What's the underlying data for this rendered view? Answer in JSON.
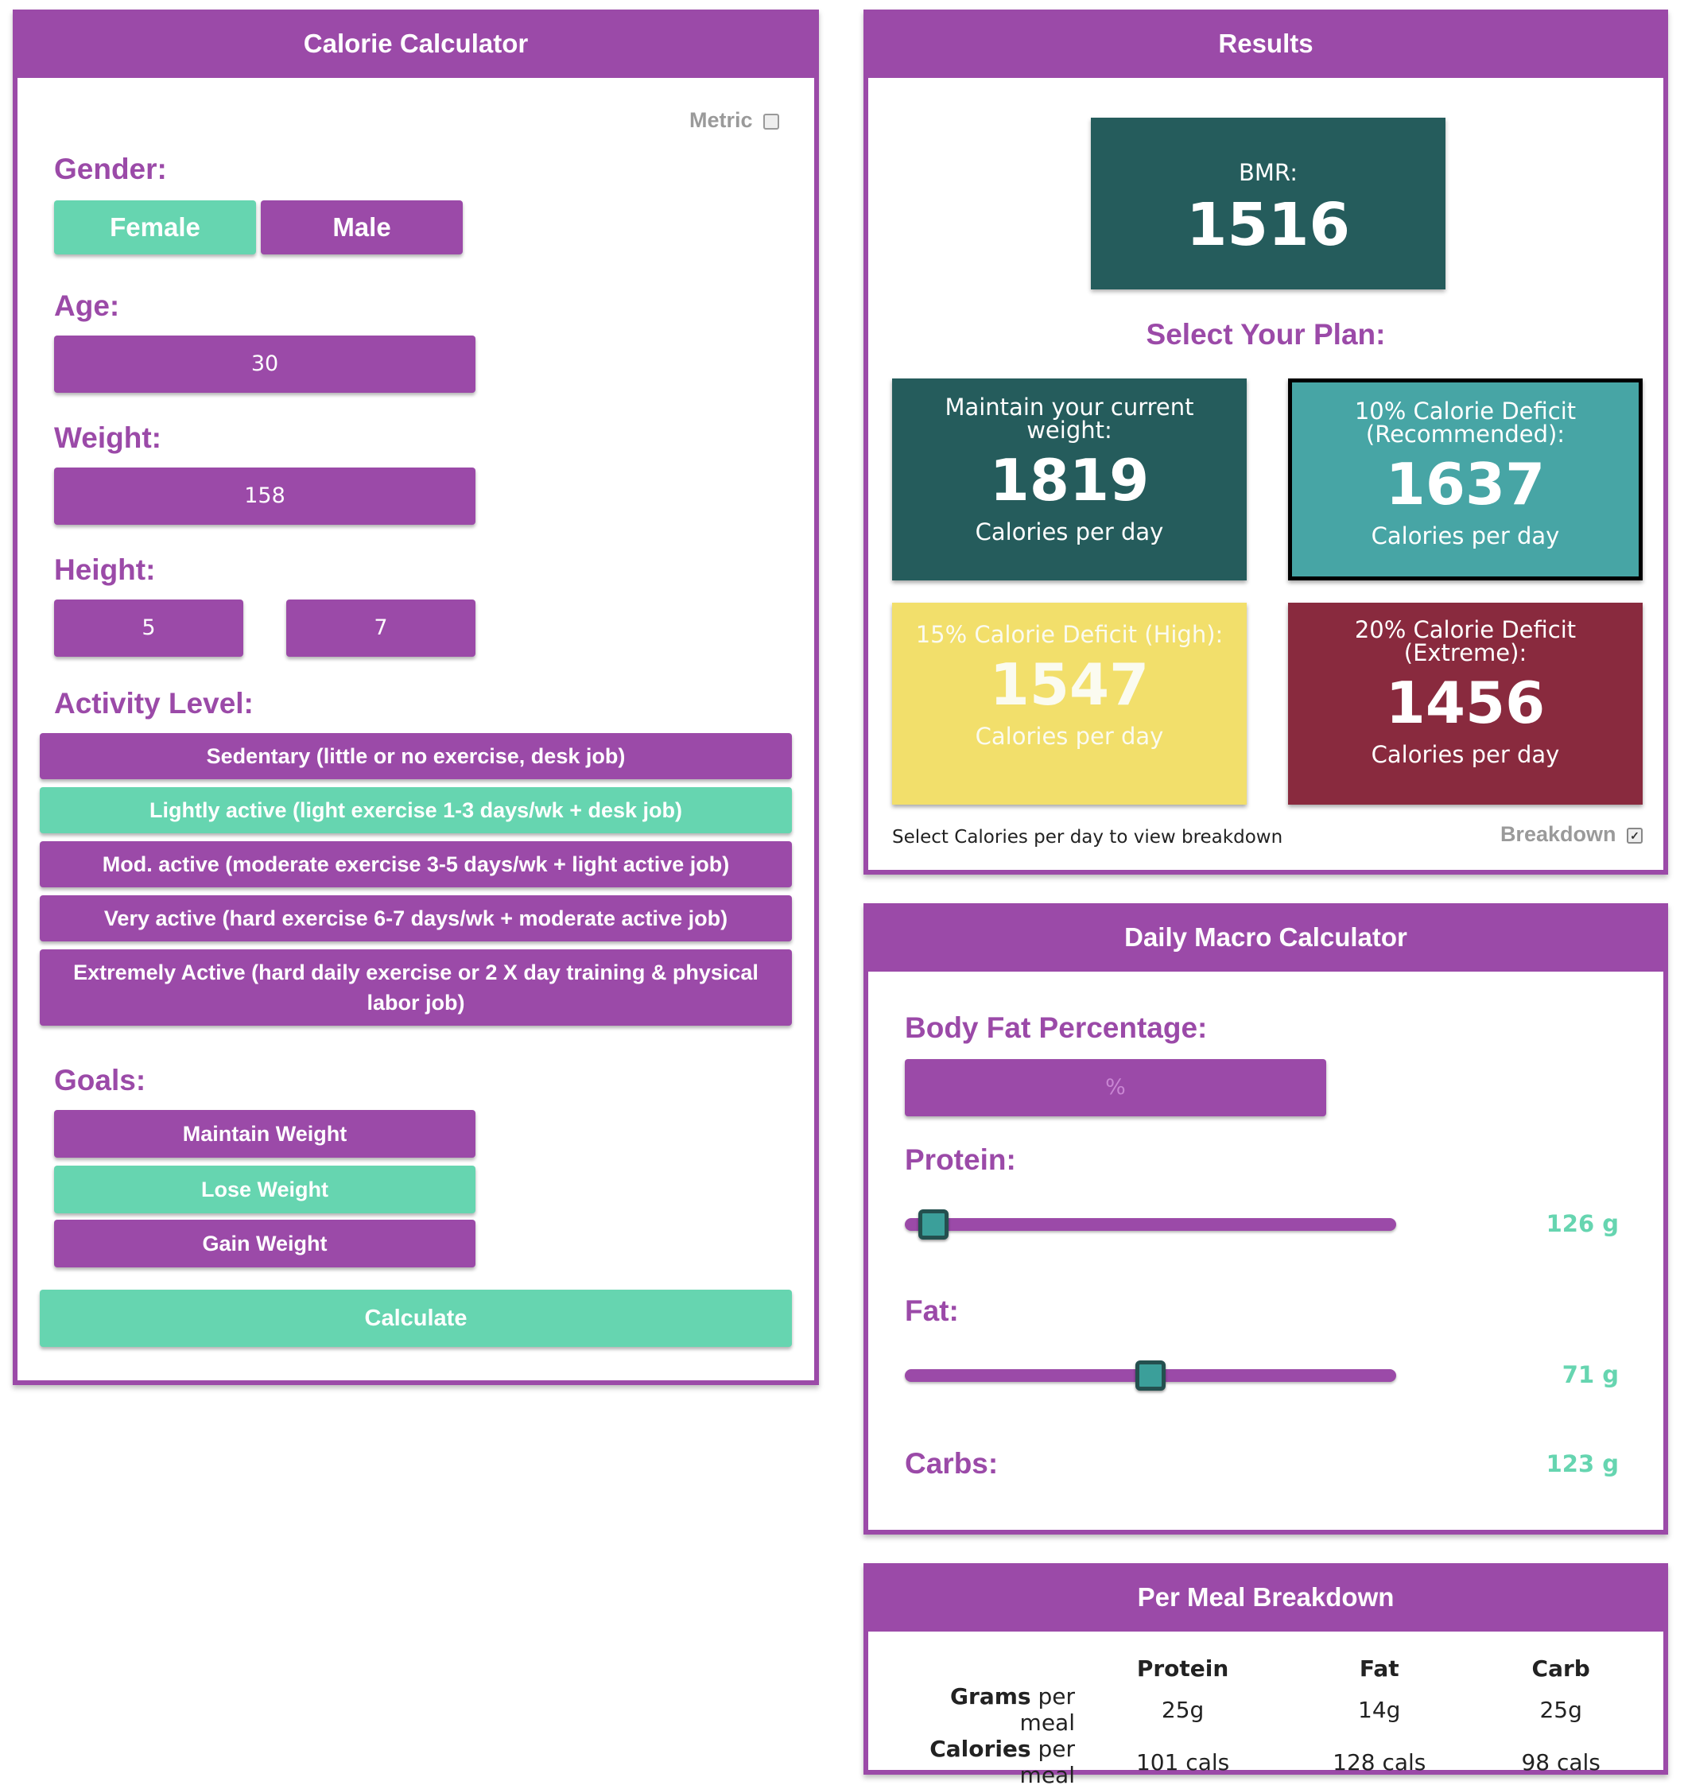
{
  "calculator": {
    "title": "Calorie Calculator",
    "metric_label": "Metric",
    "gender_label": "Gender:",
    "gender_options": [
      "Female",
      "Male"
    ],
    "age_label": "Age:",
    "age_value": "30",
    "weight_label": "Weight:",
    "weight_value": "158",
    "height_label": "Height:",
    "height_feet": "5",
    "height_inches": "7",
    "activity_label": "Activity Level:",
    "activity_options": [
      "Sedentary (little or no exercise, desk job)",
      "Lightly active (light exercise 1-3 days/wk + desk job)",
      "Mod. active (moderate exercise 3-5 days/wk + light active job)",
      "Very active (hard exercise 6-7 days/wk + moderate active job)",
      "Extremely Active (hard daily exercise or 2 X day training & physical labor job)"
    ],
    "goals_label": "Goals:",
    "goal_options": [
      "Maintain Weight",
      "Lose Weight",
      "Gain Weight"
    ],
    "calculate_label": "Calculate"
  },
  "results": {
    "title": "Results",
    "bmr_label": "BMR:",
    "bmr_value": "1516",
    "plan_heading": "Select Your Plan:",
    "plans": [
      {
        "title": "Maintain your current weight:",
        "value": "1819",
        "sub": "Calories per day",
        "color": "#255c5c"
      },
      {
        "title": "10% Calorie Deficit (Recommended):",
        "value": "1637",
        "sub": "Calories per day",
        "color": "#47a5a5"
      },
      {
        "title": "15% Calorie Deficit (High):",
        "value": "1547",
        "sub": "Calories per day",
        "color": "#f2df6b"
      },
      {
        "title": "20% Calorie Deficit (Extreme):",
        "value": "1456",
        "sub": "Calories per day",
        "color": "#892a3e"
      }
    ],
    "hint": "Select Calories per day to view breakdown",
    "breakdown_label": "Breakdown"
  },
  "macro": {
    "title": "Daily Macro Calculator",
    "bodyfat_label": "Body Fat Percentage:",
    "bodyfat_placeholder": "%",
    "protein_label": "Protein:",
    "protein_value": "126 g",
    "protein_slider_fraction": 0.03,
    "fat_label": "Fat:",
    "fat_value": "71 g",
    "fat_slider_fraction": 0.5,
    "carbs_label": "Carbs:",
    "carbs_value": "123 g"
  },
  "meal": {
    "title": "Per Meal Breakdown",
    "columns": [
      "Protein",
      "Fat",
      "Carb"
    ],
    "rows": [
      {
        "bold": "Grams",
        "rest": " per meal",
        "values": [
          "25g",
          "14g",
          "25g"
        ]
      },
      {
        "bold": "Calories",
        "rest": " per meal",
        "values": [
          "101 cals",
          "128 cals",
          "98 cals"
        ]
      }
    ]
  }
}
